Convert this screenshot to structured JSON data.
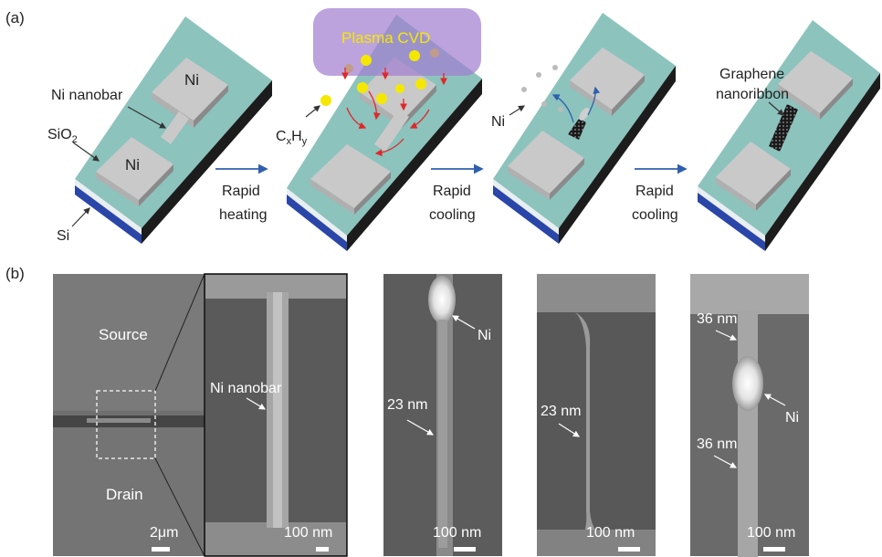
{
  "panel_a": {
    "label": "(a)",
    "step1": {
      "ni_top": "Ni",
      "ni_bottom": "Ni",
      "nanobar": "Ni nanobar",
      "sio2": "SiO",
      "sio2_sub": "2",
      "si": "Si"
    },
    "arrow1": {
      "line1": "Rapid",
      "line2": "heating"
    },
    "step2": {
      "plasma": "Plasma CVD",
      "cxhy_c": "C",
      "cxhy_x": "x",
      "cxhy_h": "H",
      "cxhy_y": "y"
    },
    "arrow2": {
      "line1": "Rapid",
      "line2": "cooling"
    },
    "step3": {
      "ni": "Ni"
    },
    "arrow3": {
      "line1": "Rapid",
      "line2": "cooling"
    },
    "step4": {
      "gnr_line1": "Graphene",
      "gnr_line2": "nanoribbon"
    }
  },
  "panel_b": {
    "label": "(b)",
    "img1": {
      "source": "Source",
      "drain": "Drain",
      "scale": "2μm"
    },
    "img2": {
      "nanobar": "Ni nanobar",
      "scale": "100 nm"
    },
    "img3": {
      "ni": "Ni",
      "width": "23 nm",
      "scale": "100 nm"
    },
    "img4": {
      "width": "23 nm",
      "scale": "100 nm"
    },
    "img5": {
      "width_top": "36 nm",
      "ni": "Ni",
      "width_bottom": "36 nm",
      "scale": "100 nm"
    }
  },
  "colors": {
    "substrate_top": "#8cc3bd",
    "sio2_side": "#e8eef2",
    "si_side": "#2a46a8",
    "ni_pad": "#c9c9c9",
    "plasma": "#a27fd0",
    "arrow_blue": "#2f5fae",
    "particle_yellow": "#f4e800"
  }
}
